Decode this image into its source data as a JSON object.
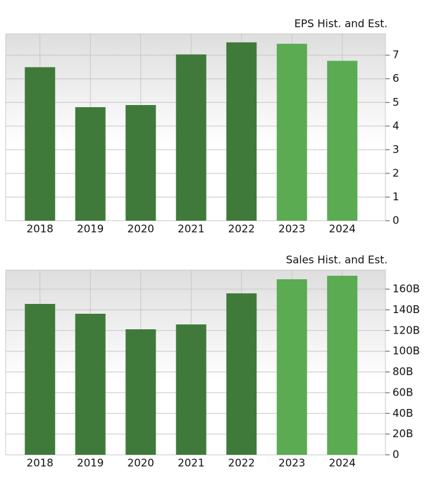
{
  "chart_data": [
    {
      "type": "bar",
      "title": "EPS Hist. and Est.",
      "categories": [
        "2018",
        "2019",
        "2020",
        "2021",
        "2022",
        "2023",
        "2024"
      ],
      "values": [
        6.49,
        4.8,
        4.89,
        7.03,
        7.54,
        7.48,
        6.76
      ],
      "colors": [
        "#3f7a3a",
        "#3f7a3a",
        "#3f7a3a",
        "#3f7a3a",
        "#3f7a3a",
        "#5aab52",
        "#5aab52"
      ],
      "ylim": [
        0,
        7.9
      ],
      "yticks": [
        0,
        1,
        2,
        3,
        4,
        5,
        6,
        7
      ],
      "grid": true
    },
    {
      "type": "bar",
      "title": "Sales Hist. and Est.",
      "categories": [
        "2018",
        "2019",
        "2020",
        "2021",
        "2022",
        "2023",
        "2024"
      ],
      "values": [
        145.7,
        136.2,
        121.2,
        125.9,
        155.9,
        169.5,
        172.9
      ],
      "colors": [
        "#3f7a3a",
        "#3f7a3a",
        "#3f7a3a",
        "#3f7a3a",
        "#3f7a3a",
        "#5aab52",
        "#5aab52"
      ],
      "ylim": [
        0,
        178.4
      ],
      "yticks": [
        0,
        {
          "value": 20,
          "label": "20B"
        },
        {
          "value": 40,
          "label": "40B"
        },
        {
          "value": 60,
          "label": "60B"
        },
        {
          "value": 80,
          "label": "80B"
        },
        {
          "value": 100,
          "label": "100B"
        },
        {
          "value": 120,
          "label": "120B"
        },
        {
          "value": 140,
          "label": "140B"
        },
        {
          "value": 160,
          "label": "160B"
        }
      ],
      "grid": true
    }
  ]
}
